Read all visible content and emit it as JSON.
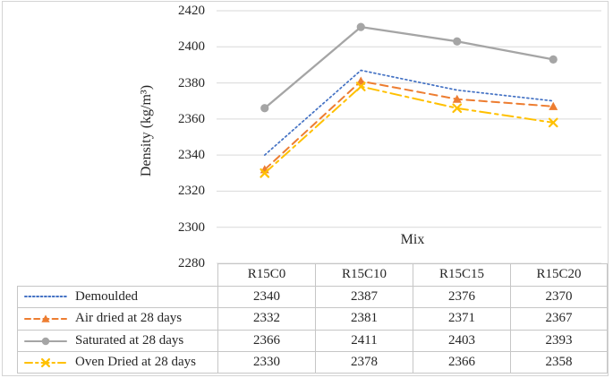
{
  "chart_data": {
    "type": "line",
    "title": "",
    "xlabel": "Mix",
    "ylabel": "Density (kg/m³)",
    "categories": [
      "R15C0",
      "R15C10",
      "R15C15",
      "R15C20"
    ],
    "series": [
      {
        "name": "Demoulded",
        "values": [
          2340,
          2387,
          2376,
          2370
        ],
        "color": "#4472C4",
        "dash": "dotted",
        "marker": "none"
      },
      {
        "name": "Air dried at 28 days",
        "values": [
          2332,
          2381,
          2371,
          2367
        ],
        "color": "#ED7D31",
        "dash": "dashed",
        "marker": "triangle"
      },
      {
        "name": "Saturated at 28 days",
        "values": [
          2366,
          2411,
          2403,
          2393
        ],
        "color": "#A5A5A5",
        "dash": "solid",
        "marker": "circle"
      },
      {
        "name": "Oven Dried at 28 days",
        "values": [
          2330,
          2378,
          2366,
          2358
        ],
        "color": "#FFC000",
        "dash": "dash-dot",
        "marker": "x"
      }
    ],
    "y_axis": {
      "min": 2280,
      "max": 2420,
      "tick_step": 20,
      "ticks": [
        2420,
        2400,
        2380,
        2360,
        2340,
        2320,
        2300,
        2280
      ]
    },
    "grid": true,
    "gridline_color": "#d9d9d9",
    "legend_position": "table-left",
    "data_table_shown": true
  },
  "table": {
    "columns": [
      "R15C0",
      "R15C10",
      "R15C15",
      "R15C20"
    ],
    "rows": [
      {
        "label": "Demoulded",
        "values": [
          "2340",
          "2387",
          "2376",
          "2370"
        ]
      },
      {
        "label": "Air dried at 28 days",
        "values": [
          "2332",
          "2381",
          "2371",
          "2367"
        ]
      },
      {
        "label": "Saturated at 28 days",
        "values": [
          "2366",
          "2411",
          "2403",
          "2393"
        ]
      },
      {
        "label": "Oven Dried at 28 days",
        "values": [
          "2330",
          "2378",
          "2366",
          "2358"
        ]
      }
    ]
  }
}
